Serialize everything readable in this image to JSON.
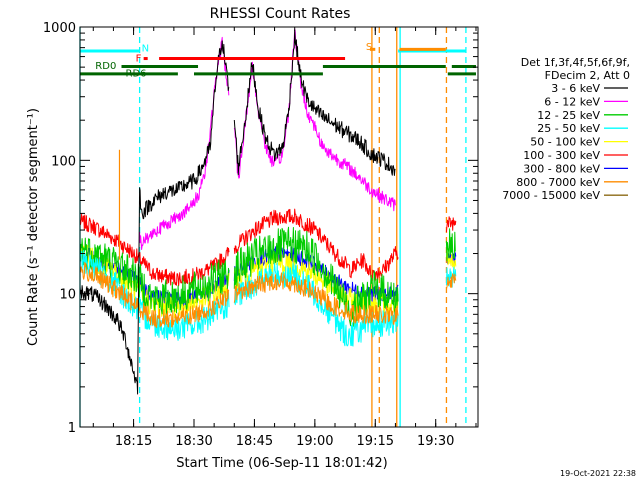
{
  "chart_data": {
    "type": "line",
    "title": "RHESSI Count Rates",
    "xlabel": "Start Time (06-Sep-11 18:01:42)",
    "ylabel": "Count Rate (s⁻¹ detector segment⁻¹)",
    "y_scale": "log",
    "ylim": [
      1,
      1000
    ],
    "xlim": [
      "18:01:42",
      "19:40:30"
    ],
    "x_ticks": [
      "18:15",
      "18:30",
      "18:45",
      "19:00",
      "19:15",
      "19:30"
    ],
    "y_ticks": [
      "1",
      "10",
      "100",
      "1000"
    ],
    "grid": false,
    "legend_position": "right",
    "legend_header": [
      "Det 1f,3f,4f,5f,6f,9f,",
      "FDecim 2, Att 0"
    ],
    "footer": "19-Oct-2021 22:38",
    "data_gaps": [
      [
        "18:38:44",
        "18:39:59"
      ],
      [
        "19:20:41",
        "19:32:40"
      ]
    ],
    "series": [
      {
        "name": "3 - 6 keV",
        "color": "#000000",
        "points": [
          [
            "18:01:42",
            10.5
          ],
          [
            "18:05:00",
            9.8
          ],
          [
            "18:08:00",
            8.2
          ],
          [
            "18:11:00",
            6.3
          ],
          [
            "18:13:00",
            4.5
          ],
          [
            "18:15:00",
            2.6
          ],
          [
            "18:16:00",
            2.0
          ],
          [
            "18:16:30",
            60
          ],
          [
            "18:17:00",
            40
          ],
          [
            "18:20:00",
            50
          ],
          [
            "18:23:00",
            58
          ],
          [
            "18:26:00",
            60
          ],
          [
            "18:28:00",
            66
          ],
          [
            "18:30:00",
            70
          ],
          [
            "18:32:00",
            88
          ],
          [
            "18:34:00",
            125
          ],
          [
            "18:35:30",
            430
          ],
          [
            "18:37:00",
            820
          ],
          [
            "18:38:30",
            360
          ],
          [
            "18:40:00",
            200
          ],
          [
            "18:41:00",
            88
          ],
          [
            "18:42:30",
            180
          ],
          [
            "18:44:30",
            550
          ],
          [
            "18:46:00",
            240
          ],
          [
            "18:48:00",
            140
          ],
          [
            "18:50:00",
            110
          ],
          [
            "18:52:00",
            125
          ],
          [
            "18:53:30",
            240
          ],
          [
            "18:55:00",
            860
          ],
          [
            "18:56:30",
            420
          ],
          [
            "18:58:00",
            290
          ],
          [
            "19:00:00",
            240
          ],
          [
            "19:02:00",
            212
          ],
          [
            "19:05:00",
            185
          ],
          [
            "19:08:00",
            160
          ],
          [
            "19:11:00",
            140
          ],
          [
            "19:14:00",
            112
          ],
          [
            "19:17:00",
            100
          ],
          [
            "19:20:00",
            85
          ]
        ]
      },
      {
        "name": "6 - 12 keV",
        "color": "#ff00ff",
        "points": [
          [
            "18:16:30",
            27
          ],
          [
            "18:17:00",
            24
          ],
          [
            "18:20:00",
            29
          ],
          [
            "18:23:00",
            33
          ],
          [
            "18:26:00",
            38
          ],
          [
            "18:29:00",
            44
          ],
          [
            "18:31:00",
            54
          ],
          [
            "18:33:00",
            90
          ],
          [
            "18:35:30",
            420
          ],
          [
            "18:37:00",
            780
          ],
          [
            "18:38:30",
            330
          ],
          [
            "18:40:00",
            190
          ],
          [
            "18:41:00",
            70
          ],
          [
            "18:42:30",
            170
          ],
          [
            "18:44:30",
            500
          ],
          [
            "18:46:00",
            230
          ],
          [
            "18:48:00",
            120
          ],
          [
            "18:50:00",
            92
          ],
          [
            "18:52:00",
            110
          ],
          [
            "18:53:30",
            230
          ],
          [
            "18:55:00",
            920
          ],
          [
            "18:56:30",
            380
          ],
          [
            "18:58:00",
            235
          ],
          [
            "19:00:00",
            180
          ],
          [
            "19:02:00",
            125
          ],
          [
            "19:05:00",
            105
          ],
          [
            "19:08:00",
            90
          ],
          [
            "19:11:00",
            75
          ],
          [
            "19:14:00",
            60
          ],
          [
            "19:17:00",
            52
          ],
          [
            "19:20:00",
            46
          ]
        ]
      },
      {
        "name": "12 - 25 keV",
        "color": "#00cc00",
        "points": [
          [
            "18:01:42",
            22
          ],
          [
            "18:05:00",
            20
          ],
          [
            "18:10:00",
            17
          ],
          [
            "18:15:00",
            14
          ],
          [
            "18:20:00",
            9
          ],
          [
            "18:25:00",
            9.5
          ],
          [
            "18:30:00",
            10.5
          ],
          [
            "18:35:00",
            12.5
          ],
          [
            "18:40:00",
            15
          ],
          [
            "18:45:00",
            19
          ],
          [
            "18:50:00",
            22
          ],
          [
            "18:54:00",
            23
          ],
          [
            "18:58:00",
            22
          ],
          [
            "19:02:00",
            16
          ],
          [
            "19:06:00",
            10
          ],
          [
            "19:09:00",
            7.5
          ],
          [
            "19:12:00",
            9
          ],
          [
            "19:15:00",
            11
          ],
          [
            "19:18:00",
            10
          ],
          [
            "19:20:00",
            9
          ],
          [
            "19:32:40",
            23
          ],
          [
            "19:35:00",
            21
          ]
        ]
      },
      {
        "name": "25 - 50 keV",
        "color": "#00ffff",
        "points": [
          [
            "18:01:42",
            18
          ],
          [
            "18:05:00",
            16
          ],
          [
            "18:10:00",
            12
          ],
          [
            "18:15:00",
            8
          ],
          [
            "18:20:00",
            6
          ],
          [
            "18:25:00",
            5.5
          ],
          [
            "18:30:00",
            5.8
          ],
          [
            "18:35:00",
            7
          ],
          [
            "18:40:00",
            9
          ],
          [
            "18:45:00",
            12
          ],
          [
            "18:50:00",
            14
          ],
          [
            "18:55:00",
            13.5
          ],
          [
            "19:00:00",
            10
          ],
          [
            "19:04:00",
            7
          ],
          [
            "19:08:00",
            4.8
          ],
          [
            "19:12:00",
            5.5
          ],
          [
            "19:16:00",
            6
          ],
          [
            "19:20:00",
            6
          ],
          [
            "19:32:40",
            14
          ],
          [
            "19:35:00",
            13.5
          ]
        ]
      },
      {
        "name": "50 - 100 keV",
        "color": "#ffff00",
        "points": [
          [
            "18:01:42",
            20
          ],
          [
            "18:05:00",
            18
          ],
          [
            "18:10:00",
            15
          ],
          [
            "18:15:00",
            11
          ],
          [
            "18:20:00",
            8
          ],
          [
            "18:25:00",
            8
          ],
          [
            "18:30:00",
            8.5
          ],
          [
            "18:35:00",
            10
          ],
          [
            "18:40:00",
            12.5
          ],
          [
            "18:45:00",
            15
          ],
          [
            "18:50:00",
            17
          ],
          [
            "18:55:00",
            16.5
          ],
          [
            "19:00:00",
            14
          ],
          [
            "19:05:00",
            10.5
          ],
          [
            "19:10:00",
            8.5
          ],
          [
            "19:15:00",
            8.5
          ],
          [
            "19:20:00",
            8
          ],
          [
            "19:32:40",
            17
          ],
          [
            "19:35:00",
            16
          ]
        ]
      },
      {
        "name": "100 - 300 keV",
        "color": "#ff0000",
        "points": [
          [
            "18:01:42",
            35
          ],
          [
            "18:05:00",
            32
          ],
          [
            "18:10:00",
            26
          ],
          [
            "18:15:00",
            20
          ],
          [
            "18:20:00",
            14
          ],
          [
            "18:25:00",
            13
          ],
          [
            "18:30:00",
            13.5
          ],
          [
            "18:35:00",
            16
          ],
          [
            "18:40:00",
            22
          ],
          [
            "18:45:00",
            30
          ],
          [
            "18:50:00",
            37
          ],
          [
            "18:55:00",
            38
          ],
          [
            "19:00:00",
            30
          ],
          [
            "19:05:00",
            20
          ],
          [
            "19:09:00",
            15
          ],
          [
            "19:12:00",
            18
          ],
          [
            "19:14:00",
            14
          ],
          [
            "19:17:00",
            15
          ],
          [
            "19:20:00",
            20
          ],
          [
            "19:32:40",
            33
          ],
          [
            "19:35:00",
            35
          ]
        ]
      },
      {
        "name": "300 - 800 keV",
        "color": "#0000ff",
        "points": [
          [
            "18:01:42",
            20
          ],
          [
            "18:05:00",
            19
          ],
          [
            "18:10:00",
            16
          ],
          [
            "18:15:00",
            13
          ],
          [
            "18:20:00",
            9.5
          ],
          [
            "18:25:00",
            9
          ],
          [
            "18:30:00",
            9.5
          ],
          [
            "18:35:00",
            11
          ],
          [
            "18:40:00",
            14
          ],
          [
            "18:45:00",
            17.5
          ],
          [
            "18:50:00",
            20
          ],
          [
            "18:55:00",
            19.5
          ],
          [
            "19:00:00",
            16.5
          ],
          [
            "19:05:00",
            12.5
          ],
          [
            "19:10:00",
            10.5
          ],
          [
            "19:15:00",
            10
          ],
          [
            "19:20:00",
            9.8
          ],
          [
            "19:32:40",
            18.5
          ],
          [
            "19:35:00",
            19
          ]
        ]
      },
      {
        "name": "800 - 7000 keV",
        "color": "#ff8c00",
        "points": [
          [
            "18:01:42",
            15
          ],
          [
            "18:05:00",
            14
          ],
          [
            "18:10:00",
            11
          ],
          [
            "18:15:00",
            8.5
          ],
          [
            "18:20:00",
            6.5
          ],
          [
            "18:25:00",
            6.5
          ],
          [
            "18:30:00",
            7
          ],
          [
            "18:35:00",
            8
          ],
          [
            "18:40:00",
            10
          ],
          [
            "18:45:00",
            11.5
          ],
          [
            "18:50:00",
            12.5
          ],
          [
            "18:55:00",
            12
          ],
          [
            "19:00:00",
            10
          ],
          [
            "19:05:00",
            8
          ],
          [
            "19:10:00",
            7
          ],
          [
            "19:15:00",
            7
          ],
          [
            "19:20:00",
            6.8
          ],
          [
            "19:32:40",
            12
          ],
          [
            "19:35:00",
            12.5
          ]
        ]
      },
      {
        "name": "7000 - 15000 keV",
        "color": "#8b6914",
        "points": []
      }
    ],
    "vertical_markers": [
      {
        "time": "18:01:42",
        "color": "#00ffff",
        "style": "solid"
      },
      {
        "time": "18:16:30",
        "color": "#00ffff",
        "style": "dashed"
      },
      {
        "time": "19:37:30",
        "color": "#00ffff",
        "style": "dashed"
      },
      {
        "time": "19:21:10",
        "color": "#00ffff",
        "style": "solid"
      },
      {
        "time": "19:20:20",
        "color": "#ff8c00",
        "style": "solid"
      },
      {
        "time": "19:14:10",
        "color": "#ff8c00",
        "style": "solid"
      },
      {
        "time": "19:16:00",
        "color": "#ff8c00",
        "style": "dashed"
      },
      {
        "time": "19:32:40",
        "color": "#ff8c00",
        "style": "dashed"
      }
    ],
    "spike": {
      "time": "18:11:30",
      "color": "#ff8c00",
      "value": 120
    },
    "flag_bars": [
      {
        "label": "",
        "color": "#00ffff",
        "y": 660,
        "segments": [
          [
            "18:01:42",
            "18:16:30"
          ],
          [
            "19:20:40",
            "19:37:30"
          ]
        ]
      },
      {
        "label": "N",
        "color": "#00ffff",
        "y": 660,
        "segments": []
      },
      {
        "label": "F",
        "color": "#ff0000",
        "y": 580,
        "segments": [
          [
            "18:17:30",
            "18:18:30"
          ],
          [
            "18:21:20",
            "19:07:30"
          ]
        ]
      },
      {
        "label": "S",
        "color": "#ff8c00",
        "y": 680,
        "segments": [
          [
            "19:13:40",
            "19:15:00"
          ],
          [
            "19:21:00",
            "19:32:30"
          ]
        ]
      },
      {
        "label": "RD0",
        "color": "#006400",
        "y": 505,
        "segments": [
          [
            "18:12:00",
            "18:31:00"
          ],
          [
            "19:02:00",
            "19:32:30"
          ],
          [
            "19:34:00",
            "19:40:00"
          ]
        ]
      },
      {
        "label": "RD6",
        "color": "#006400",
        "y": 445,
        "segments": [
          [
            "18:01:42",
            "18:26:00"
          ],
          [
            "18:30:00",
            "19:02:00"
          ],
          [
            "19:33:00",
            "19:40:00"
          ]
        ]
      }
    ]
  }
}
